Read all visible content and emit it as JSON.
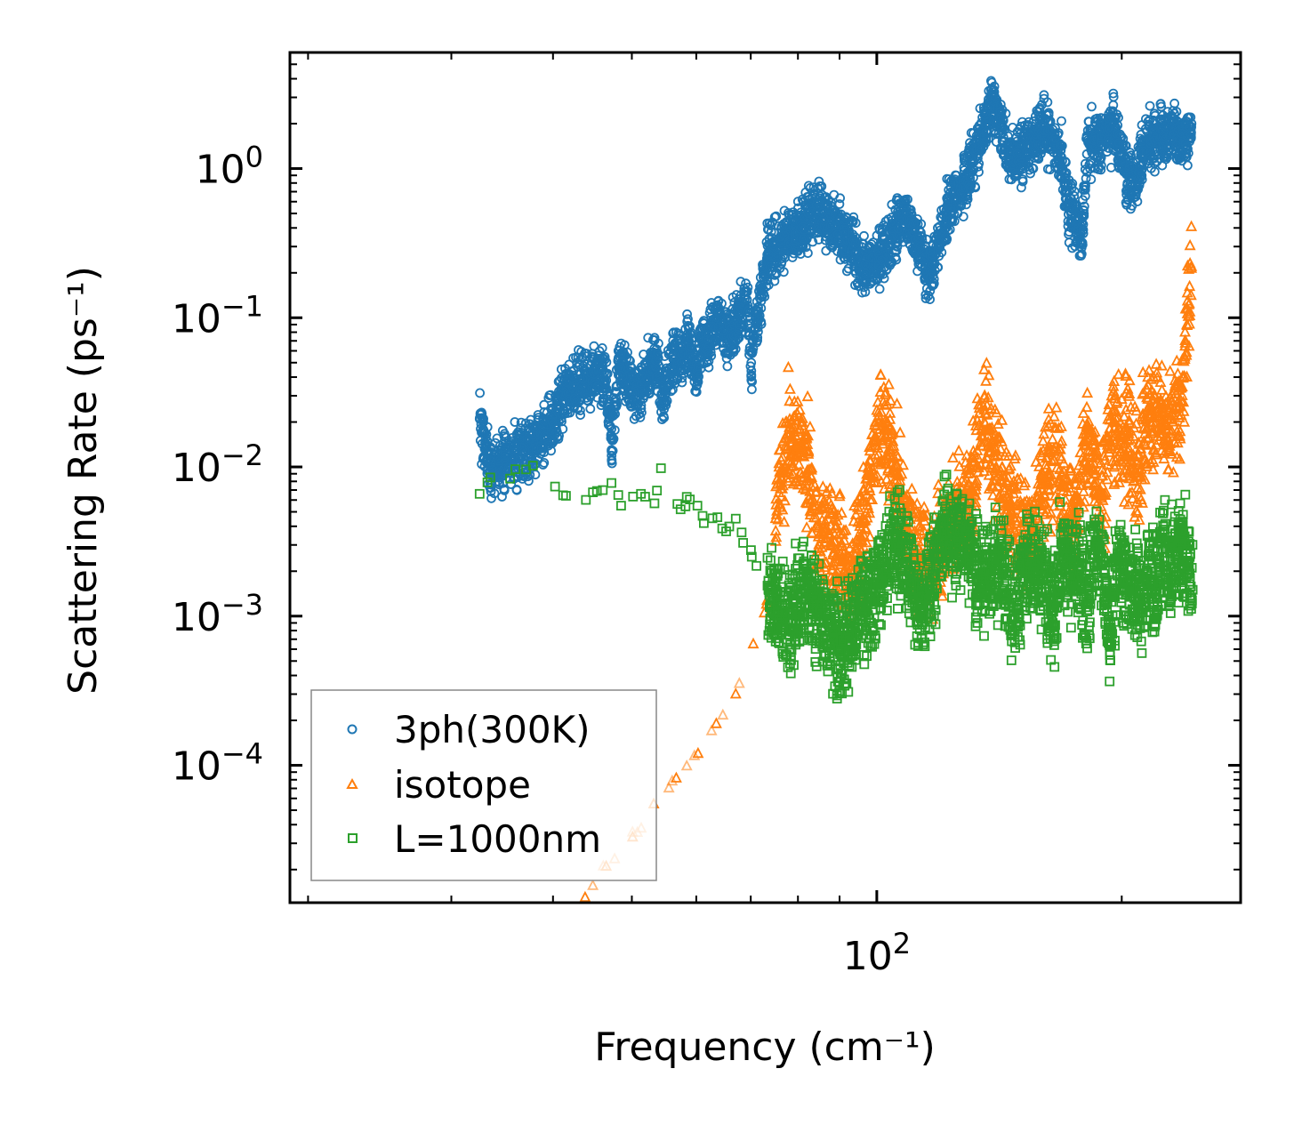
{
  "chart_data": {
    "type": "scatter",
    "title": "",
    "xlabel": "Frequency (cm⁻¹)",
    "ylabel": "Scattering Rate (ps⁻¹)",
    "xscale": "log",
    "yscale": "log",
    "xlim": [
      19,
      280
    ],
    "ylim": [
      1.2e-05,
      6
    ],
    "xticks": [
      {
        "value": 100,
        "label": "10",
        "exp": "2"
      }
    ],
    "yticks": [
      {
        "value": 1,
        "label": "10",
        "exp": "0"
      },
      {
        "value": 0.1,
        "label": "10",
        "exp": "−1"
      },
      {
        "value": 0.01,
        "label": "10",
        "exp": "−2"
      },
      {
        "value": 0.001,
        "label": "10",
        "exp": "−3"
      },
      {
        "value": 0.0001,
        "label": "10",
        "exp": "−4"
      }
    ],
    "legend": {
      "position": "lower-left"
    },
    "series": [
      {
        "name": "3ph(300K)",
        "marker": "circle",
        "color": "#1f77b4",
        "anchors": [
          [
            32.5,
            0.021
          ],
          [
            32.6,
            0.018
          ],
          [
            33.5,
            0.0095
          ],
          [
            38.5,
            0.015
          ],
          [
            41.5,
            0.031
          ],
          [
            44.8,
            0.04
          ],
          [
            46.3,
            0.038
          ],
          [
            47.2,
            0.018
          ],
          [
            47.2,
            0.013
          ],
          [
            48.3,
            0.055
          ],
          [
            48.3,
            0.047
          ],
          [
            51.2,
            0.028
          ],
          [
            51.2,
            0.031
          ],
          [
            53.4,
            0.055
          ],
          [
            53.4,
            0.05
          ],
          [
            54.4,
            0.031
          ],
          [
            57.4,
            0.065
          ],
          [
            57.4,
            0.055
          ],
          [
            57.4,
            0.049
          ],
          [
            58.6,
            0.075
          ],
          [
            60.1,
            0.04
          ],
          [
            61.4,
            0.085
          ],
          [
            61.4,
            0.06
          ],
          [
            63.8,
            0.1
          ],
          [
            65.8,
            0.075
          ],
          [
            67.4,
            0.09
          ],
          [
            69.3,
            0.15
          ],
          [
            70.1,
            0.05
          ],
          [
            71.6,
            0.11
          ],
          [
            73.4,
            0.26
          ],
          [
            75.9,
            0.3
          ],
          [
            79.2,
            0.38
          ],
          [
            84.3,
            0.55
          ],
          [
            88.5,
            0.4
          ],
          [
            93.3,
            0.3
          ],
          [
            96.8,
            0.2
          ],
          [
            100.3,
            0.25
          ],
          [
            104.5,
            0.35
          ],
          [
            108.2,
            0.48
          ],
          [
            112.3,
            0.32
          ],
          [
            116.2,
            0.2
          ],
          [
            119.3,
            0.3
          ],
          [
            122.4,
            0.55
          ],
          [
            126.3,
            0.7
          ],
          [
            129.6,
            0.95
          ],
          [
            132.6,
            1.2
          ],
          [
            135.3,
            1.8
          ],
          [
            138.5,
            2.8
          ],
          [
            141.3,
            2.2
          ],
          [
            145.1,
            1.1
          ],
          [
            148.3,
            1.2
          ],
          [
            152.6,
            1.4
          ],
          [
            156.2,
            1.6
          ],
          [
            160.3,
            1.8
          ],
          [
            164.4,
            1.55
          ],
          [
            168.6,
            1.2
          ],
          [
            172.3,
            0.55
          ],
          [
            175.4,
            0.45
          ],
          [
            178.6,
            0.32
          ],
          [
            181.2,
            1.25
          ],
          [
            184.3,
            1.7
          ],
          [
            188.4,
            1.4
          ],
          [
            192.1,
            1.9
          ],
          [
            195.6,
            1.8
          ],
          [
            198.3,
            1.5
          ],
          [
            201.2,
            1.1
          ],
          [
            203.3,
            0.8
          ],
          [
            209.4,
            0.85
          ],
          [
            211.1,
            1.25
          ],
          [
            216.4,
            1.55
          ],
          [
            218.3,
            1.45
          ],
          [
            224.2,
            1.65
          ],
          [
            230.7,
            1.8
          ],
          [
            236.8,
            1.5
          ],
          [
            243.7,
            2.0
          ]
        ]
      },
      {
        "name": "isotope",
        "marker": "triangle",
        "color": "#ff7f0e",
        "anchors": [
          [
            43.8,
            1.3e-05
          ],
          [
            46.5,
            2.1e-05
          ],
          [
            50.1,
            3.3e-05
          ],
          [
            53.2,
            5.5e-05
          ],
          [
            56.7,
            8.2e-05
          ],
          [
            60.3,
            0.00012
          ],
          [
            63.5,
            0.00019
          ],
          [
            67.1,
            0.0003
          ],
          [
            70.5,
            0.00065
          ],
          [
            73.2,
            0.0012
          ],
          [
            75.1,
            0.0045
          ],
          [
            77.4,
            0.013
          ],
          [
            80.4,
            0.018
          ],
          [
            84.2,
            0.004
          ],
          [
            88.3,
            0.003
          ],
          [
            93.4,
            0.002
          ],
          [
            97.3,
            0.0065
          ],
          [
            100.6,
            0.02
          ],
          [
            105.6,
            0.009
          ],
          [
            110.7,
            0.003
          ],
          [
            115.3,
            0.0025
          ],
          [
            120.5,
            0.003
          ],
          [
            125.3,
            0.004
          ],
          [
            130.2,
            0.006
          ],
          [
            135.6,
            0.02
          ],
          [
            140.2,
            0.01
          ],
          [
            145.4,
            0.006
          ],
          [
            150.3,
            0.004
          ],
          [
            155.7,
            0.003
          ],
          [
            160.3,
            0.008
          ],
          [
            165.1,
            0.011
          ],
          [
            170.6,
            0.006
          ],
          [
            175.3,
            0.004
          ],
          [
            180.5,
            0.014
          ],
          [
            184.2,
            0.012
          ],
          [
            189.3,
            0.0065
          ],
          [
            193.4,
            0.018
          ],
          [
            198.4,
            0.016
          ],
          [
            203.6,
            0.015
          ],
          [
            206.6,
            0.012
          ],
          [
            210.3,
            0.0095
          ],
          [
            215.5,
            0.025
          ],
          [
            218.6,
            0.02
          ],
          [
            224.3,
            0.025
          ],
          [
            227.6,
            0.015
          ],
          [
            231.5,
            0.02
          ],
          [
            237.3,
            0.03
          ],
          [
            240.5,
            0.09
          ],
          [
            243.6,
            0.22
          ]
        ]
      },
      {
        "name": "L=1000nm",
        "marker": "square",
        "color": "#2ca02c",
        "anchors": [
          [
            32.5,
            0.0066
          ],
          [
            33.5,
            0.0085
          ],
          [
            37.8,
            0.0102
          ],
          [
            41.5,
            0.0064
          ],
          [
            45.3,
            0.0069
          ],
          [
            47.2,
            0.0078
          ],
          [
            48.5,
            0.0055
          ],
          [
            51.3,
            0.0066
          ],
          [
            53.3,
            0.0057
          ],
          [
            54.3,
            0.0098
          ],
          [
            57.4,
            0.0052
          ],
          [
            58.4,
            0.0063
          ],
          [
            60.2,
            0.0055
          ],
          [
            61.3,
            0.0042
          ],
          [
            63.7,
            0.0046
          ],
          [
            65.3,
            0.0037
          ],
          [
            67.1,
            0.0045
          ],
          [
            68.5,
            0.0031
          ],
          [
            70.2,
            0.0025
          ],
          [
            73.4,
            0.0016
          ],
          [
            75.2,
            0.0011
          ],
          [
            78.4,
            0.0009
          ],
          [
            81.3,
            0.0015
          ],
          [
            85.5,
            0.001
          ],
          [
            90.3,
            0.0006
          ],
          [
            95.2,
            0.0011
          ],
          [
            100.4,
            0.0016
          ],
          [
            104.3,
            0.003
          ],
          [
            108.5,
            0.0025
          ],
          [
            112.3,
            0.0012
          ],
          [
            116.2,
            0.0015
          ],
          [
            120.6,
            0.0035
          ],
          [
            125.3,
            0.0038
          ],
          [
            129.5,
            0.003
          ],
          [
            134.2,
            0.0015
          ],
          [
            138.6,
            0.0022
          ],
          [
            142.4,
            0.0025
          ],
          [
            147.2,
            0.001
          ],
          [
            152.3,
            0.0022
          ],
          [
            156.3,
            0.002
          ],
          [
            160.6,
            0.0018
          ],
          [
            164.5,
            0.0009
          ],
          [
            168.3,
            0.0025
          ],
          [
            172.7,
            0.0021
          ],
          [
            177.3,
            0.002
          ],
          [
            181.5,
            0.0012
          ],
          [
            185.2,
            0.003
          ],
          [
            189.3,
            0.0022
          ],
          [
            193.4,
            0.0008
          ],
          [
            197.6,
            0.0025
          ],
          [
            201.3,
            0.0018
          ],
          [
            204.6,
            0.0015
          ],
          [
            208.4,
            0.0015
          ],
          [
            212.3,
            0.0011
          ],
          [
            216.5,
            0.0025
          ],
          [
            220.3,
            0.0015
          ],
          [
            224.6,
            0.0028
          ],
          [
            228.5,
            0.0018
          ],
          [
            232.4,
            0.0025
          ],
          [
            236.4,
            0.003
          ],
          [
            240.6,
            0.0022
          ],
          [
            244.5,
            0.0015
          ]
        ]
      }
    ]
  }
}
